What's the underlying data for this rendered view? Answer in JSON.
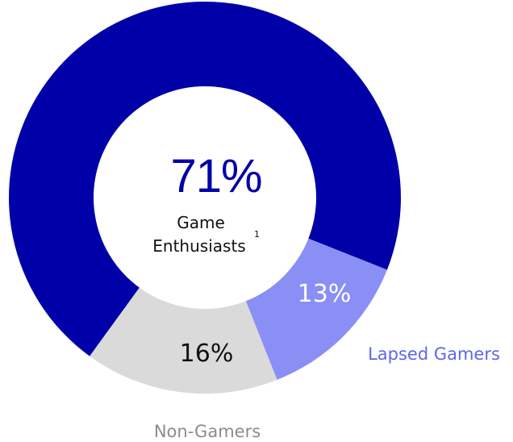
{
  "chart_data": {
    "type": "pie",
    "variant": "donut",
    "categories": [
      "Game Enthusiasts",
      "Lapsed Gamers",
      "Non-Gamers"
    ],
    "values": [
      71,
      13,
      16
    ],
    "unit": "%",
    "labels": [
      "71%",
      "13%",
      "16%"
    ],
    "center": {
      "value": "71%",
      "label_line1": "Game",
      "label_line2": "Enthusiasts",
      "footnote": "1"
    },
    "legend": {
      "lapsed": "Lapsed Gamers",
      "nongamers": "Non-Gamers"
    },
    "colors": {
      "enthusiasts": "#0000a8",
      "lapsed": "#8a8ff5",
      "nongamers": "#dadada",
      "center_value": "#0000a8",
      "lapsed_label": "#ffffff",
      "nongamers_label": "#111111",
      "lapsed_legend": "#5e66e8",
      "nongamers_legend": "#8c8c8c"
    }
  }
}
